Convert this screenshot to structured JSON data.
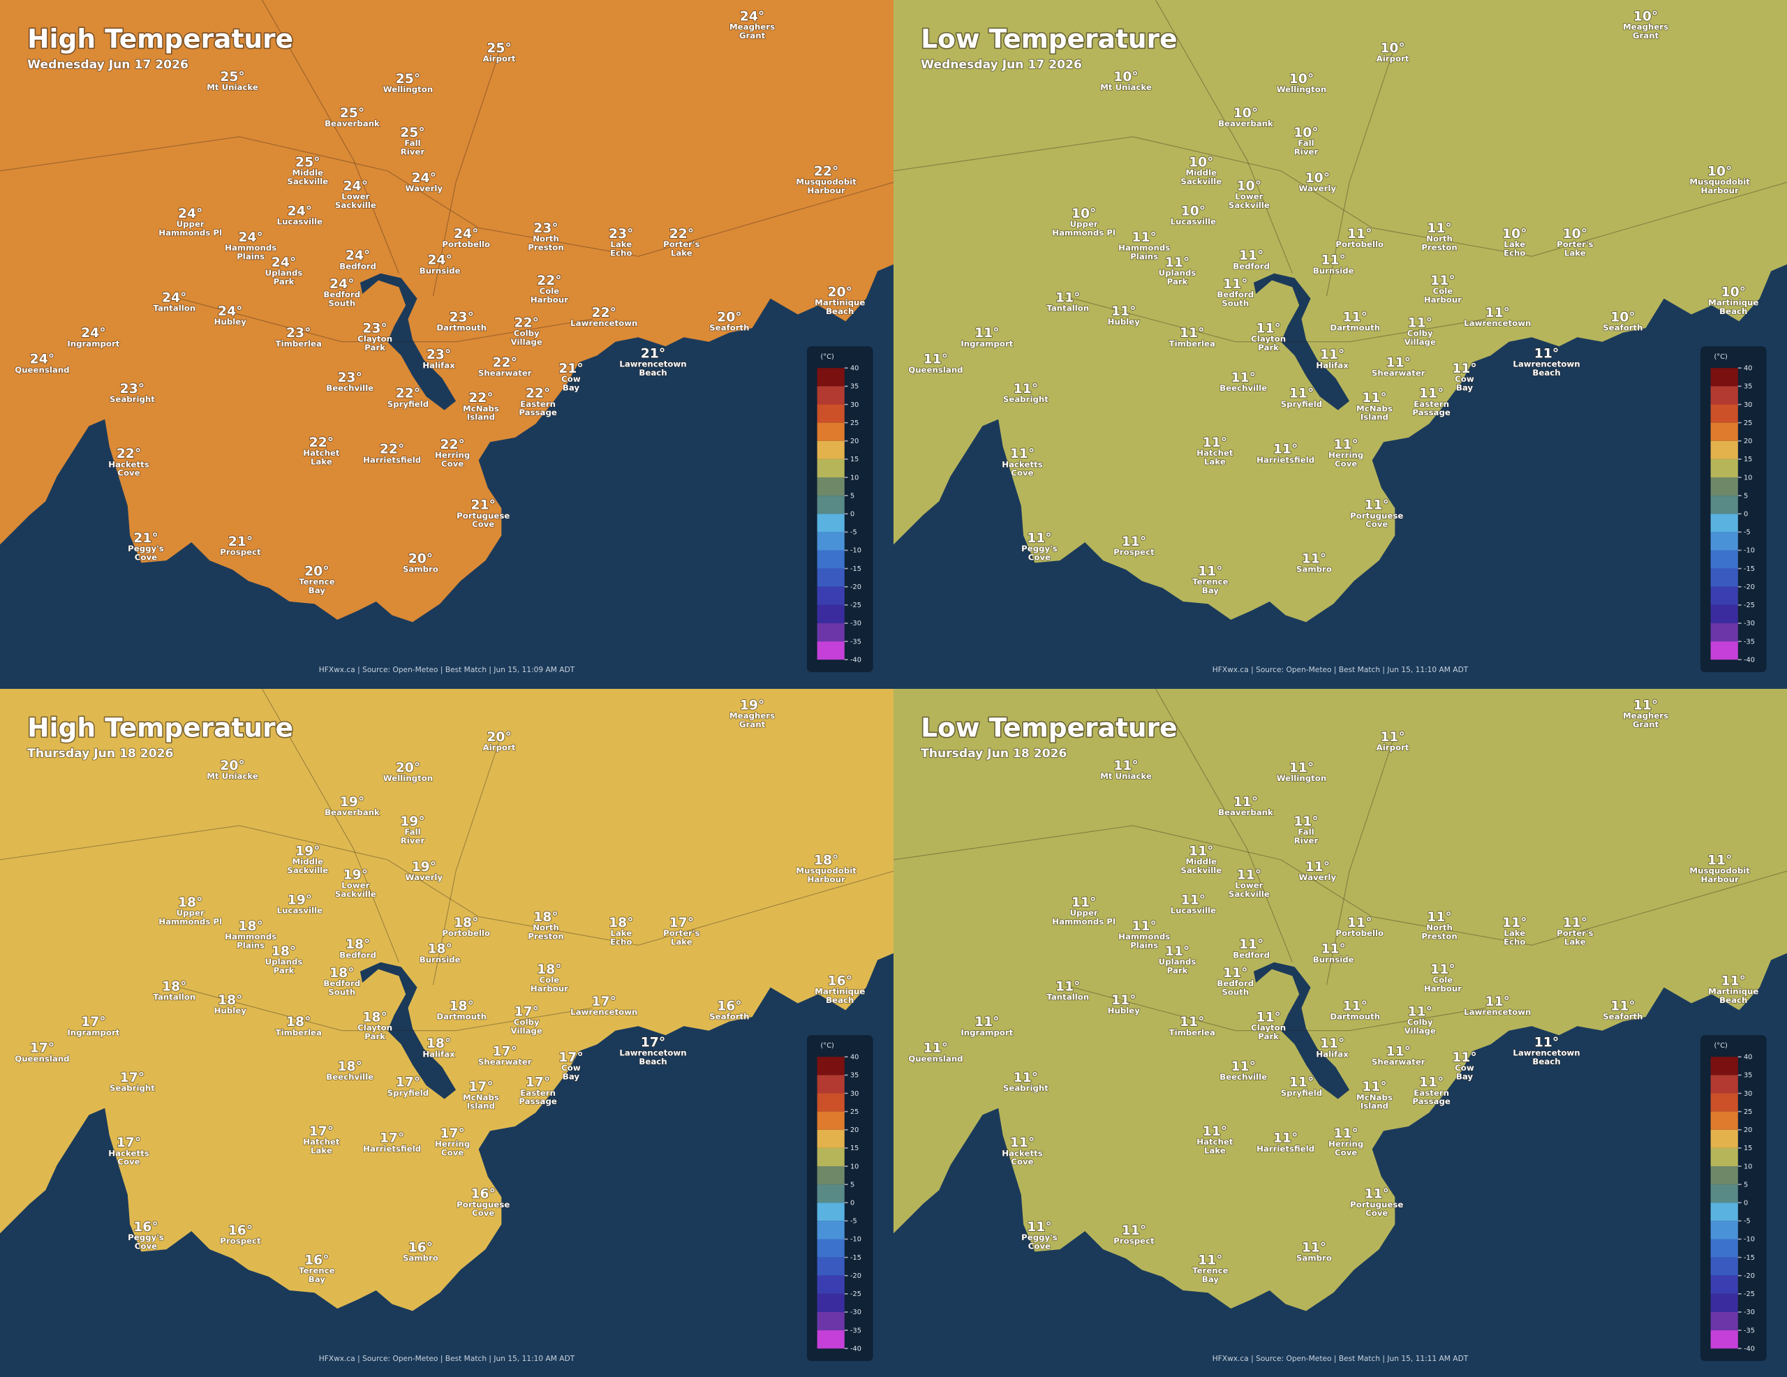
{
  "places": [
    [
      "Meaghers",
      "Grant"
    ],
    [
      "Airport"
    ],
    [
      "Mt Uniacke"
    ],
    [
      "Wellington"
    ],
    [
      "Beaverbank"
    ],
    [
      "Fall",
      "River"
    ],
    [
      "Middle",
      "Sackville"
    ],
    [
      "Lower",
      "Sackville"
    ],
    [
      "Waverly"
    ],
    [
      "Musquodobit",
      "Harbour"
    ],
    [
      "Upper",
      "Hammonds Pl"
    ],
    [
      "Lucasville"
    ],
    [
      "Hammonds",
      "Plains"
    ],
    [
      "Portobello"
    ],
    [
      "North",
      "Preston"
    ],
    [
      "Lake",
      "Echo"
    ],
    [
      "Porter's",
      "Lake"
    ],
    [
      "Uplands",
      "Park"
    ],
    [
      "Bedford"
    ],
    [
      "Burnside"
    ],
    [
      "Bedford",
      "South"
    ],
    [
      "Cole",
      "Harbour"
    ],
    [
      "Martinique",
      "Beach"
    ],
    [
      "Tantallon"
    ],
    [
      "Hubley"
    ],
    [
      "Dartmouth"
    ],
    [
      "Colby",
      "Village"
    ],
    [
      "Lawrencetown"
    ],
    [
      "Seaforth"
    ],
    [
      "Ingramport"
    ],
    [
      "Timberlea"
    ],
    [
      "Clayton",
      "Park"
    ],
    [
      "Halifax"
    ],
    [
      "Lawrencetown",
      "Beach"
    ],
    [
      "Queensland"
    ],
    [
      "Shearwater"
    ],
    [
      "Cow",
      "Bay"
    ],
    [
      "Beechville"
    ],
    [
      "Seabright"
    ],
    [
      "Spryfield"
    ],
    [
      "McNabs",
      "Island"
    ],
    [
      "Eastern",
      "Passage"
    ],
    [
      "Hatchet",
      "Lake"
    ],
    [
      "Harrietsfield"
    ],
    [
      "Herring",
      "Cove"
    ],
    [
      "Hacketts",
      "Cove"
    ],
    [
      "Portuguese",
      "Cove"
    ],
    [
      "Peggy's",
      "Cove"
    ],
    [
      "Prospect"
    ],
    [
      "Terence",
      "Bay"
    ],
    [
      "Sambro"
    ]
  ],
  "panels": [
    {
      "title": "High Temperature",
      "date": "Wednesday Jun 17 2026",
      "land_color": "#db8a36",
      "footer": "HFXwx.ca | Source: Open-Meteo | Best Match | Jun 15, 11:09 AM ADT",
      "temps": [
        "24°",
        "25°",
        "25°",
        "25°",
        "25°",
        "25°",
        "25°",
        "24°",
        "24°",
        "22°",
        "24°",
        "24°",
        "24°",
        "24°",
        "23°",
        "23°",
        "22°",
        "24°",
        "24°",
        "24°",
        "24°",
        "22°",
        "20°",
        "24°",
        "24°",
        "23°",
        "22°",
        "22°",
        "20°",
        "24°",
        "23°",
        "23°",
        "23°",
        "21°",
        "24°",
        "22°",
        "21°",
        "23°",
        "23°",
        "22°",
        "22°",
        "22°",
        "22°",
        "22°",
        "22°",
        "22°",
        "21°",
        "21°",
        "21°",
        "20°",
        "20°"
      ]
    },
    {
      "title": "Low Temperature",
      "date": "Wednesday Jun 17 2026",
      "land_color": "#b6b55b",
      "footer": "HFXwx.ca | Source: Open-Meteo | Best Match | Jun 15, 11:10 AM ADT",
      "temps": [
        "10°",
        "10°",
        "10°",
        "10°",
        "10°",
        "10°",
        "10°",
        "10°",
        "10°",
        "10°",
        "10°",
        "10°",
        "11°",
        "11°",
        "11°",
        "10°",
        "10°",
        "11°",
        "11°",
        "11°",
        "11°",
        "11°",
        "10°",
        "11°",
        "11°",
        "11°",
        "11°",
        "11°",
        "10°",
        "11°",
        "11°",
        "11°",
        "11°",
        "11°",
        "11°",
        "11°",
        "11°",
        "11°",
        "11°",
        "11°",
        "11°",
        "11°",
        "11°",
        "11°",
        "11°",
        "11°",
        "11°",
        "11°",
        "11°",
        "11°",
        "11°"
      ]
    },
    {
      "title": "High Temperature",
      "date": "Thursday Jun 18 2026",
      "land_color": "#dfb950",
      "footer": "HFXwx.ca | Source: Open-Meteo | Best Match | Jun 15, 11:10 AM ADT",
      "temps": [
        "19°",
        "20°",
        "20°",
        "20°",
        "19°",
        "19°",
        "19°",
        "19°",
        "19°",
        "18°",
        "18°",
        "19°",
        "18°",
        "18°",
        "18°",
        "18°",
        "17°",
        "18°",
        "18°",
        "18°",
        "18°",
        "18°",
        "16°",
        "18°",
        "18°",
        "18°",
        "17°",
        "17°",
        "16°",
        "17°",
        "18°",
        "18°",
        "18°",
        "17°",
        "17°",
        "17°",
        "17°",
        "18°",
        "17°",
        "17°",
        "17°",
        "17°",
        "17°",
        "17°",
        "17°",
        "17°",
        "16°",
        "16°",
        "16°",
        "16°",
        "16°"
      ]
    },
    {
      "title": "Low Temperature",
      "date": "Thursday Jun 18 2026",
      "land_color": "#b6b45a",
      "footer": "HFXwx.ca | Source: Open-Meteo | Best Match | Jun 15, 11:11 AM ADT",
      "temps": [
        "11°",
        "11°",
        "11°",
        "11°",
        "11°",
        "11°",
        "11°",
        "11°",
        "11°",
        "11°",
        "11°",
        "11°",
        "11°",
        "11°",
        "11°",
        "11°",
        "11°",
        "11°",
        "11°",
        "11°",
        "11°",
        "11°",
        "11°",
        "11°",
        "11°",
        "11°",
        "11°",
        "11°",
        "11°",
        "11°",
        "11°",
        "11°",
        "11°",
        "11°",
        "11°",
        "11°",
        "11°",
        "11°",
        "11°",
        "11°",
        "11°",
        "11°",
        "11°",
        "11°",
        "11°",
        "11°",
        "11°",
        "11°",
        "11°",
        "11°",
        "11°"
      ]
    }
  ],
  "legend": {
    "unit": "(°C)",
    "ticks": [
      40,
      35,
      30,
      25,
      20,
      15,
      10,
      5,
      0,
      -5,
      -10,
      -15,
      -20,
      -25,
      -30,
      -35,
      -40
    ],
    "colors": [
      "#7a1010",
      "#b23a30",
      "#cc5028",
      "#df7b2c",
      "#e4b24c",
      "#b6b55a",
      "#6f8868",
      "#5a8a86",
      "#5ab2e0",
      "#4a92d8",
      "#3c72cc",
      "#3a5ac0",
      "#3b3eb0",
      "#3a2c9e",
      "#6c36a8",
      "#c440d8"
    ]
  }
}
